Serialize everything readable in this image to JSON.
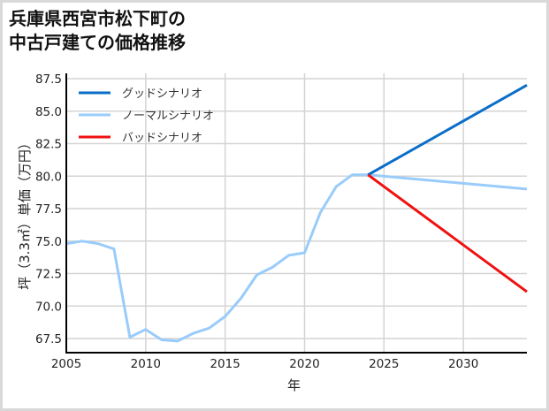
{
  "title_line1": "兵庫県西宮市松下町の",
  "title_line2": "中古戸建ての価格推移",
  "chart_data": {
    "type": "line",
    "title": "兵庫県西宮市松下町の中古戸建ての価格推移",
    "xlabel": "年",
    "ylabel": "坪（3.3㎡）単価（万円）",
    "xlim": [
      2005,
      2034
    ],
    "ylim": [
      66.4,
      87.9
    ],
    "xticks": [
      2005,
      2010,
      2015,
      2020,
      2025,
      2030
    ],
    "yticks": [
      67.5,
      70.0,
      72.5,
      75.0,
      77.5,
      80.0,
      82.5,
      85.0,
      87.5
    ],
    "ytick_labels": [
      "67.5",
      "70.0",
      "72.5",
      "75.0",
      "77.5",
      "80.0",
      "82.5",
      "85.0",
      "87.5"
    ],
    "grid": true,
    "legend_position": "upper left",
    "series": [
      {
        "name": "グッドシナリオ",
        "color": "#0a6ec8",
        "x": [
          2024,
          2034
        ],
        "values": [
          80.1,
          87.0
        ]
      },
      {
        "name": "ノーマルシナリオ",
        "color": "#99ccfa",
        "x": [
          2005,
          2006,
          2007,
          2008,
          2009,
          2010,
          2011,
          2012,
          2013,
          2014,
          2015,
          2016,
          2017,
          2018,
          2019,
          2020,
          2021,
          2022,
          2023,
          2024,
          2034
        ],
        "values": [
          74.8,
          75.0,
          74.8,
          74.4,
          67.6,
          68.2,
          67.4,
          67.3,
          67.9,
          68.3,
          69.2,
          70.6,
          72.4,
          73.0,
          73.9,
          74.1,
          77.2,
          79.2,
          80.1,
          80.1,
          79.0
        ]
      },
      {
        "name": "バッドシナリオ",
        "color": "#f01010",
        "x": [
          2024,
          2034
        ],
        "values": [
          80.1,
          71.1
        ]
      }
    ]
  }
}
